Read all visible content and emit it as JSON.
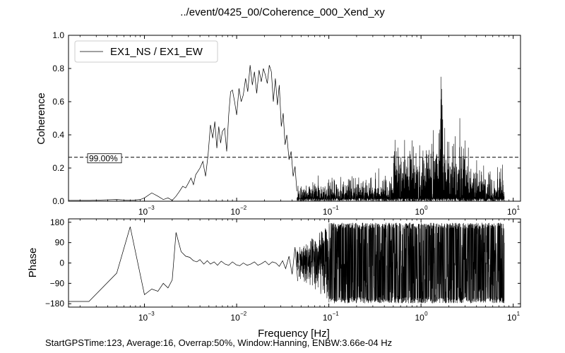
{
  "figure": {
    "title": "../event/0425_00/Coherence_000_Xend_xy",
    "footer": "StartGPSTime:123, Average:16, Overrap:50%, Window:Hanning, ENBW:3.66e-04 Hz",
    "xlabel": "Frequency [Hz]"
  },
  "chart_data": [
    {
      "type": "line",
      "panel": "coherence",
      "ylabel": "Coherence",
      "xscale": "log",
      "xlim": [
        0.00015,
        12
      ],
      "ylim": [
        0,
        1.0
      ],
      "yticks": [
        0.0,
        0.2,
        0.4,
        0.6,
        0.8,
        1.0
      ],
      "ytick_labels": [
        "0.0",
        "0.2",
        "0.4",
        "0.6",
        "0.8",
        "1.0"
      ],
      "xticks": [
        0.001,
        0.01,
        0.1,
        1,
        10
      ],
      "xtick_labels": [
        "10",
        "10",
        "10",
        "10",
        "10"
      ],
      "xtick_exponents": [
        "−3",
        "−2",
        "−1",
        "0",
        "1"
      ],
      "legend": {
        "location": "upper-left",
        "entries": [
          "EX1_NS / EX1_EW"
        ]
      },
      "threshold": {
        "value": 0.265,
        "label": "99.00%",
        "style": "dashed"
      },
      "series": [
        {
          "name": "EX1_NS / EX1_EW",
          "color": "#000000",
          "x": [
            0.00015,
            0.00025,
            0.0005,
            0.0007,
            0.0009,
            0.001,
            0.0012,
            0.0014,
            0.0016,
            0.0018,
            0.002,
            0.0022,
            0.0024,
            0.0026,
            0.0028,
            0.003,
            0.0032,
            0.0034,
            0.0036,
            0.0038,
            0.004,
            0.0043,
            0.0046,
            0.0049,
            0.0052,
            0.0055,
            0.0058,
            0.0061,
            0.0064,
            0.0067,
            0.007,
            0.0074,
            0.0078,
            0.0082,
            0.0086,
            0.009,
            0.0095,
            0.01,
            0.0106,
            0.0112,
            0.0118,
            0.0125,
            0.0132,
            0.014,
            0.0148,
            0.0156,
            0.0165,
            0.0175,
            0.0185,
            0.0195,
            0.0205,
            0.0215,
            0.0226,
            0.0238,
            0.025,
            0.0263,
            0.0277,
            0.029,
            0.0305,
            0.032,
            0.0335,
            0.035,
            0.037,
            0.039,
            0.041,
            0.043,
            0.045
          ],
          "y": [
            0.005,
            0.005,
            0.01,
            0.005,
            0.01,
            0.02,
            0.05,
            0.03,
            0.01,
            0.02,
            0.005,
            0.03,
            0.06,
            0.09,
            0.08,
            0.11,
            0.14,
            0.1,
            0.16,
            0.18,
            0.2,
            0.24,
            0.15,
            0.28,
            0.46,
            0.38,
            0.48,
            0.32,
            0.45,
            0.35,
            0.42,
            0.44,
            0.3,
            0.52,
            0.66,
            0.67,
            0.6,
            0.52,
            0.68,
            0.6,
            0.64,
            0.74,
            0.66,
            0.82,
            0.7,
            0.78,
            0.65,
            0.79,
            0.72,
            0.8,
            0.76,
            0.71,
            0.82,
            0.78,
            0.6,
            0.74,
            0.58,
            0.7,
            0.45,
            0.53,
            0.34,
            0.4,
            0.25,
            0.3,
            0.15,
            0.21,
            0.06
          ]
        }
      ]
    },
    {
      "type": "line",
      "panel": "phase",
      "ylabel": "Phase",
      "xscale": "log",
      "xlim": [
        0.00015,
        12
      ],
      "ylim": [
        -195,
        195
      ],
      "yticks": [
        -180,
        -90,
        0,
        90,
        180
      ],
      "ytick_labels": [
        "−180",
        "−90",
        "0",
        "90",
        "180"
      ],
      "xticks": [
        0.001,
        0.01,
        0.1,
        1,
        10
      ],
      "xtick_labels": [
        "10",
        "10",
        "10",
        "10",
        "10"
      ],
      "xtick_exponents": [
        "−3",
        "−2",
        "−1",
        "0",
        "1"
      ],
      "series": [
        {
          "name": "",
          "color": "#000000",
          "x": [
            0.00015,
            0.00025,
            0.0005,
            0.0007,
            0.001,
            0.0012,
            0.0014,
            0.0016,
            0.0018,
            0.002,
            0.0022,
            0.0025,
            0.0028,
            0.0031,
            0.0034,
            0.0037,
            0.004,
            0.0044,
            0.0048,
            0.0052,
            0.0057,
            0.0062,
            0.0068,
            0.0075,
            0.0082,
            0.009,
            0.0099,
            0.0108,
            0.0118,
            0.013,
            0.0142,
            0.0156,
            0.017,
            0.0186,
            0.0204,
            0.0223,
            0.0244,
            0.0267,
            0.029,
            0.0315,
            0.034,
            0.037,
            0.04,
            0.043,
            0.046
          ],
          "y": [
            -170,
            -170,
            -45,
            160,
            -140,
            -115,
            -125,
            -90,
            -110,
            -75,
            135,
            50,
            30,
            25,
            10,
            5,
            15,
            -5,
            10,
            -5,
            5,
            -10,
            8,
            -5,
            -10,
            5,
            -8,
            -12,
            0,
            -10,
            -5,
            5,
            -10,
            -3,
            8,
            -8,
            5,
            0,
            -15,
            10,
            -25,
            30,
            -50,
            70,
            -80
          ]
        }
      ]
    }
  ]
}
